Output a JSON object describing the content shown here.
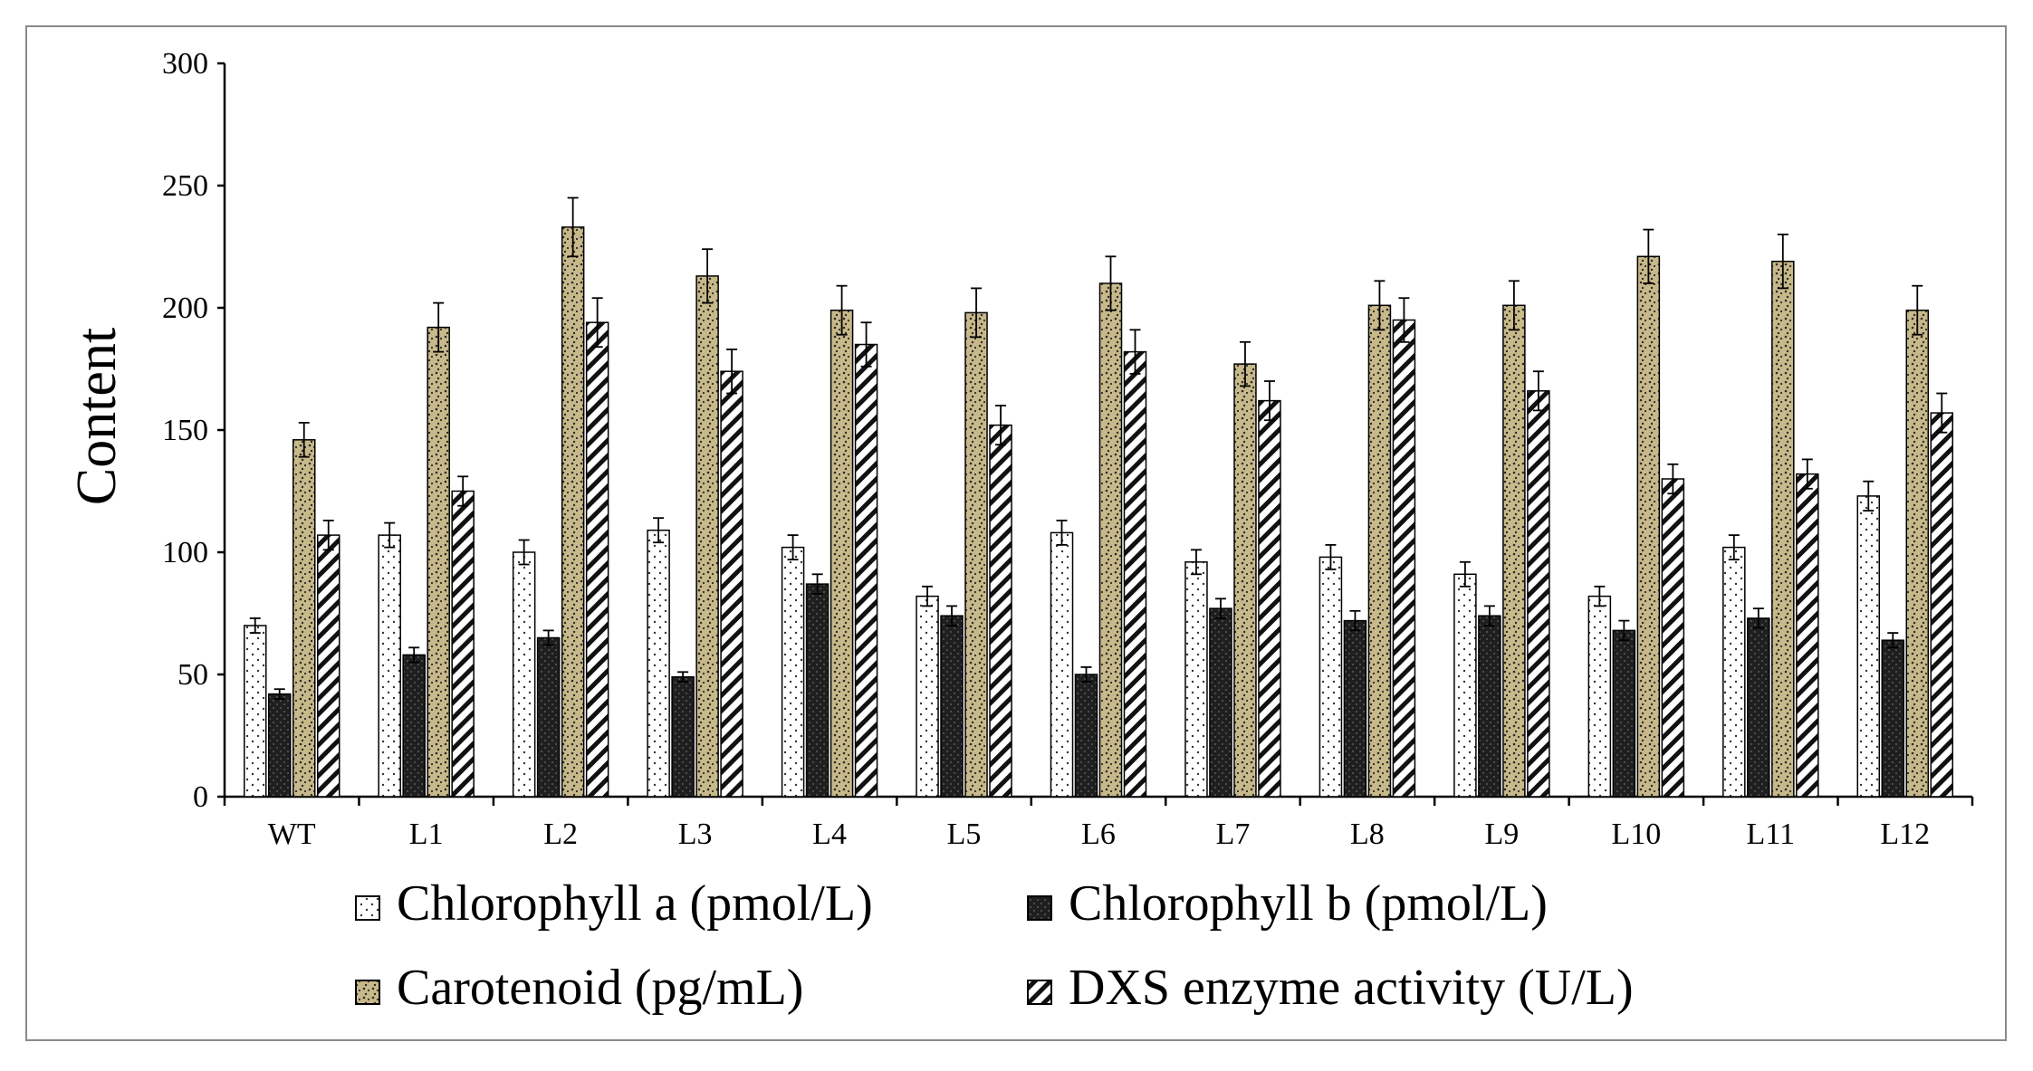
{
  "chart_data": {
    "type": "bar",
    "title": "",
    "xlabel": "",
    "ylabel": "Content",
    "ylim": [
      0,
      300
    ],
    "yticks": [
      "0",
      "50",
      "100",
      "150",
      "200",
      "250",
      "300"
    ],
    "categories": [
      "WT",
      "L1",
      "L2",
      "L3",
      "L4",
      "L5",
      "L6",
      "L7",
      "L8",
      "L9",
      "L10",
      "L11",
      "L12"
    ],
    "series": [
      {
        "name": "Chlorophyll a (pmol/L)",
        "pattern": "dots",
        "values": [
          70,
          107,
          100,
          109,
          102,
          82,
          108,
          96,
          98,
          91,
          82,
          102,
          123
        ],
        "errors": [
          3,
          5,
          5,
          5,
          5,
          4,
          5,
          5,
          5,
          5,
          4,
          5,
          6
        ]
      },
      {
        "name": "Chlorophyll b (pmol/L)",
        "pattern": "dark-crosshatch",
        "values": [
          42,
          58,
          65,
          49,
          87,
          74,
          50,
          77,
          72,
          74,
          68,
          73,
          64
        ],
        "errors": [
          2,
          3,
          3,
          2,
          4,
          4,
          3,
          4,
          4,
          4,
          4,
          4,
          3
        ]
      },
      {
        "name": "Carotenoid (pg/mL)",
        "pattern": "speckled-tan",
        "values": [
          146,
          192,
          233,
          213,
          199,
          198,
          210,
          177,
          201,
          201,
          221,
          219,
          199
        ],
        "errors": [
          7,
          10,
          12,
          11,
          10,
          10,
          11,
          9,
          10,
          10,
          11,
          11,
          10
        ]
      },
      {
        "name": "DXS enzyme activity (U/L)",
        "pattern": "diagonal-stripes",
        "values": [
          107,
          125,
          194,
          174,
          185,
          152,
          182,
          162,
          195,
          166,
          130,
          132,
          157
        ],
        "errors": [
          6,
          6,
          10,
          9,
          9,
          8,
          9,
          8,
          9,
          8,
          6,
          6,
          8
        ]
      }
    ]
  },
  "colors": {
    "frame": "#8a8a8a",
    "axis": "#000000",
    "dark_fill": "#1f1f1f",
    "tan_fill": "#c8b98a"
  }
}
